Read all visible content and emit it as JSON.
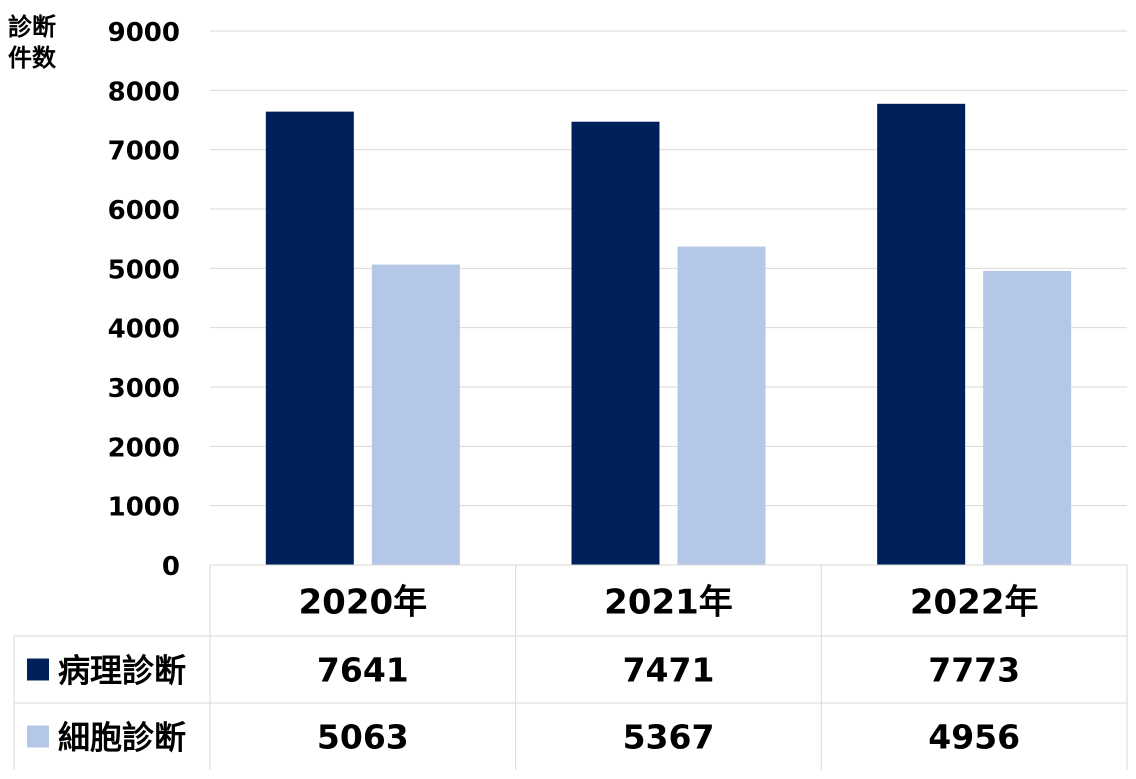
{
  "chart_data": {
    "type": "bar",
    "ylabel": "診断\n件数",
    "ylim": [
      0,
      9000
    ],
    "yticks": [
      0,
      1000,
      2000,
      3000,
      4000,
      5000,
      6000,
      7000,
      8000,
      9000
    ],
    "grid": true,
    "categories": [
      "2020年",
      "2021年",
      "2022年"
    ],
    "series": [
      {
        "name": "病理診断",
        "color": "#00205B",
        "values": [
          7641,
          7471,
          7773
        ]
      },
      {
        "name": "細胞診断",
        "color": "#B4C7E7",
        "values": [
          5063,
          5367,
          4956
        ]
      }
    ],
    "legend": "data-table-left"
  }
}
